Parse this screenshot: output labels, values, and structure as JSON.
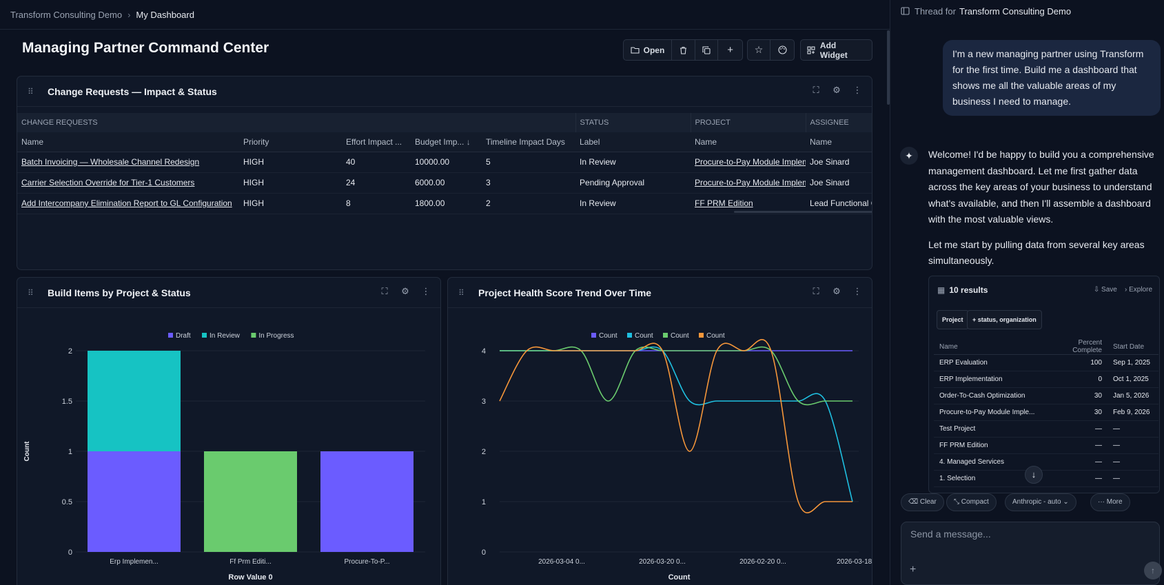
{
  "breadcrumb": {
    "root": "Transform Consulting Demo",
    "current": "My Dashboard"
  },
  "page": {
    "title": "Managing Partner Command Center"
  },
  "toolbar": {
    "open_label": "Open",
    "add_widget_label": "Add Widget"
  },
  "change_requests": {
    "title": "Change Requests — Impact & Status",
    "groups": [
      "CHANGE REQUESTS",
      "STATUS",
      "PROJECT",
      "ASSIGNEE"
    ],
    "columns": [
      "Name",
      "Priority",
      "Effort Impact ...",
      "Budget Imp...",
      "Timeline Impact Days",
      "Label",
      "Name",
      "Name"
    ],
    "rows": [
      [
        "Batch Invoicing — Wholesale Channel Redesign",
        "HIGH",
        "40",
        "10000.00",
        "5",
        "In Review",
        "Procure-to-Pay Module Implem",
        "Joe Sinard"
      ],
      [
        "Carrier Selection Override for Tier-1 Customers",
        "HIGH",
        "24",
        "6000.00",
        "3",
        "Pending Approval",
        "Procure-to-Pay Module Implem",
        "Joe Sinard"
      ],
      [
        "Add Intercompany Elimination Report to GL Configuration",
        "HIGH",
        "8",
        "1800.00",
        "2",
        "In Review",
        "FF PRM Edition",
        "Lead Functional C"
      ]
    ]
  },
  "build_items": {
    "title": "Build Items by Project & Status"
  },
  "health": {
    "title": "Project Health Score Trend Over Time"
  },
  "chart_data": [
    {
      "type": "bar",
      "stacked": true,
      "title": "Build Items by Project & Status",
      "categories": [
        "Erp Implemen...",
        "Ff Prm Editi...",
        "Procure-To-P..."
      ],
      "series": [
        {
          "name": "Draft",
          "color": "#6b5cff",
          "values": [
            1,
            0,
            1
          ]
        },
        {
          "name": "In Review",
          "color": "#16c3c3",
          "values": [
            1,
            0,
            0
          ]
        },
        {
          "name": "In Progress",
          "color": "#6acb6e",
          "values": [
            0,
            1,
            0
          ]
        }
      ],
      "xlabel": "Row Value 0",
      "ylabel": "Count",
      "ylim": [
        0,
        2
      ],
      "yticks": [
        "0",
        "0.5",
        "1",
        "1.5",
        "2"
      ],
      "legend": "top-center"
    },
    {
      "type": "line",
      "title": "Project Health Score Trend Over Time",
      "x_ticks": [
        "2026-03-04 0...",
        "2026-03-20 0...",
        "2026-02-20 0...",
        "2026-03-18 0..."
      ],
      "series": [
        {
          "name": "Count",
          "color": "#6b5cff",
          "values": [
            4,
            4,
            4,
            4,
            4,
            4,
            4,
            4,
            4,
            4,
            4,
            4,
            4,
            4
          ]
        },
        {
          "name": "Count",
          "color": "#1fbfe0",
          "values": [
            4,
            4,
            4,
            4,
            4,
            4,
            4,
            3,
            3,
            3,
            3,
            3,
            3,
            1
          ]
        },
        {
          "name": "Count",
          "color": "#6acb6e",
          "values": [
            4,
            4,
            4,
            4,
            3,
            4,
            4,
            4,
            4,
            4,
            4,
            3,
            3,
            3
          ]
        },
        {
          "name": "Count",
          "color": "#f5963a",
          "values": [
            3,
            4,
            4,
            4,
            4,
            4,
            4,
            2,
            4,
            4,
            4,
            1,
            1,
            1
          ]
        }
      ],
      "xlabel": "Count",
      "ylabel": "",
      "ylim": [
        0,
        4
      ],
      "yticks": [
        "0",
        "1",
        "2",
        "3",
        "4"
      ],
      "legend": "top-center"
    }
  ],
  "thread": {
    "label": "Thread for",
    "workspace": "Transform Consulting Demo",
    "user_message": "I'm a new managing partner using Transform for the first time. Build me a dashboard that shows me all the valuable areas of my business I need to manage.",
    "assistant_p1": "Welcome! I'd be happy to build you a comprehensive management dashboard. Let me first gather data across the key areas of your business to understand what's available, and then I'll assemble a dashboard with the most valuable views.",
    "assistant_p2": "Let me start by pulling data from several key areas simultaneously."
  },
  "results": {
    "count_label": "10 results",
    "save_label": "Save",
    "explore_label": "Explore",
    "chips": [
      "Project",
      "+ status, organization"
    ],
    "columns": [
      "Name",
      "Percent Complete",
      "Start Date"
    ],
    "rows": [
      [
        "ERP Evaluation",
        "100",
        "Sep 1, 2025"
      ],
      [
        "ERP Implementation",
        "0",
        "Oct 1, 2025"
      ],
      [
        "Order-To-Cash Optimization",
        "30",
        "Jan 5, 2026"
      ],
      [
        "Procure-to-Pay Module Imple...",
        "30",
        "Feb 9, 2026"
      ],
      [
        "Test Project",
        "—",
        "—"
      ],
      [
        "FF PRM Edition",
        "—",
        "—"
      ],
      [
        "4. Managed Services",
        "—",
        "—"
      ],
      [
        "1. Selection",
        "—",
        "—"
      ]
    ]
  },
  "composer": {
    "clear": "Clear",
    "compact": "Compact",
    "model": "Anthropic - auto",
    "more": "More",
    "placeholder": "Send a message..."
  }
}
